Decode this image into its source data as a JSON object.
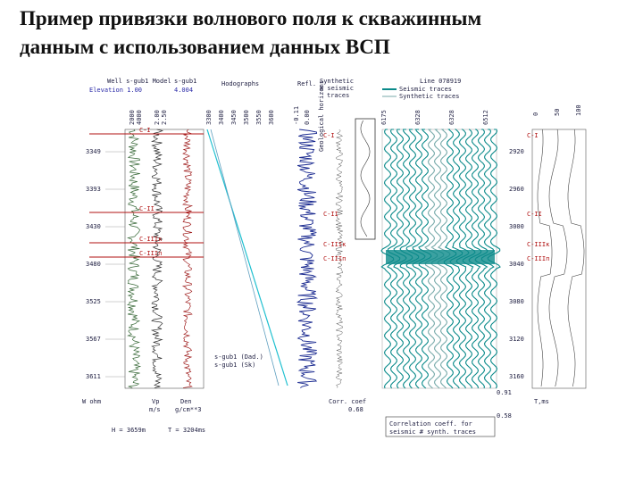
{
  "title": [
    "Пример привязки волнового поля к скважинным",
    "данным с использованием данных ВСП"
  ],
  "figure": {
    "header": {
      "well_model": "Well s-gub1 Model",
      "elevation": "Elevation 1.00",
      "well": "s-gub1",
      "well_value": "4.004",
      "hodographs": "Hodographs",
      "refl": "Refl.",
      "synthetic": "Synthetic",
      "seismic_traces": "# seismic",
      "traces": "traces",
      "line": "Line 078919",
      "legend_seismic": "Seismic traces",
      "legend_synthetic": "Synthetic traces",
      "horizons_caption": "Geological horizons"
    },
    "track_scales": [
      "2000",
      "4000",
      "2.00",
      "2.50",
      "3300",
      "3400",
      "3450",
      "3500",
      "3550",
      "3600"
    ],
    "refl_scales": [
      "-0.11",
      "0.00"
    ],
    "seismic_scales": [
      "6175",
      "6328",
      "6328",
      "6512"
    ],
    "corr_scales": [
      "0",
      "50",
      "100"
    ],
    "depth_labels": [
      "3349",
      "3393",
      "3430",
      "3480",
      "3525",
      "3567",
      "3611"
    ],
    "time_labels": [
      "2920",
      "2960",
      "3000",
      "3040",
      "3080",
      "3120",
      "3160"
    ],
    "horizons": [
      "С-I",
      "С-II",
      "С-IIIк",
      "С-IIIп"
    ],
    "hodograph_legend": [
      "s-gub1 (Dad.)",
      "s-gub1 (Sk)"
    ],
    "footer": {
      "w_label": "W ohm",
      "vp_label": "Vp",
      "vp_unit": "m/s",
      "den_label": "Den",
      "den_unit": "g/cm**3",
      "h": "H = 3659m",
      "t": "T = 3204ms",
      "corr_label": "Corr. coef",
      "corr_value": "0.68",
      "corr_top": "0.91",
      "corr_bottom": "0.58",
      "t_ms": "T,ms",
      "corr_caption": [
        "Correlation coeff. for",
        "seismic # synth. traces"
      ]
    }
  }
}
